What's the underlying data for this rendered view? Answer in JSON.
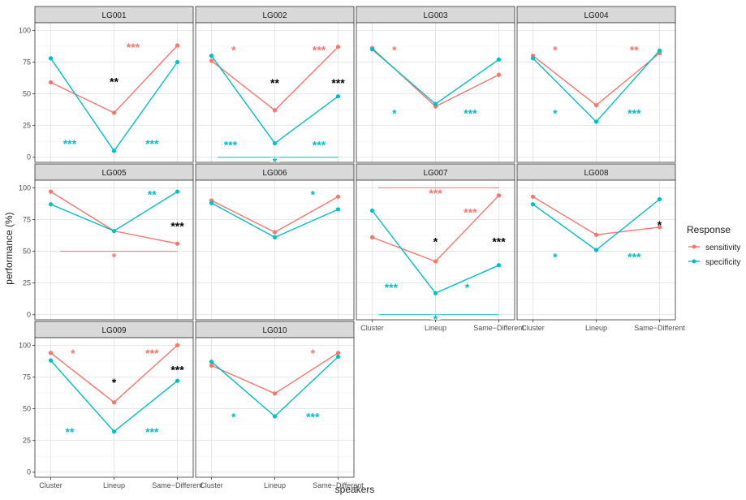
{
  "x_axis_title": "speakers",
  "y_axis_title": "performance (%)",
  "legend": {
    "title": "Response",
    "items": [
      {
        "label": "sensitivity",
        "color": "#F8766D"
      },
      {
        "label": "specificity",
        "color": "#00BFC4"
      }
    ]
  },
  "chart_data": {
    "type": "line",
    "facets": [
      "LG001",
      "LG002",
      "LG003",
      "LG004",
      "LG005",
      "LG006",
      "LG007",
      "LG008",
      "LG009",
      "LG010"
    ],
    "categories": [
      "Cluster",
      "Lineup",
      "Same−Different"
    ],
    "y_ticks": [
      "0",
      "25",
      "50",
      "75",
      "100"
    ],
    "ylim": [
      -4,
      106
    ],
    "grid": true,
    "legend_position": "right",
    "panels": [
      {
        "name": "LG001",
        "sensitivity": [
          59,
          35,
          88
        ],
        "specificity": [
          78,
          5,
          75
        ],
        "annotations": [
          {
            "text": "***",
            "color": "#F8766D",
            "x": 2.3,
            "y": 88
          },
          {
            "text": "**",
            "color": "#000000",
            "x": 2.0,
            "y": 61
          },
          {
            "text": "***",
            "color": "#00BFC4",
            "x": 1.3,
            "y": 12
          },
          {
            "text": "***",
            "color": "#00BFC4",
            "x": 2.6,
            "y": 12
          }
        ]
      },
      {
        "name": "LG002",
        "sensitivity": [
          76,
          37,
          87
        ],
        "specificity": [
          80,
          11,
          48
        ],
        "annotations": [
          {
            "text": "*",
            "color": "#F8766D",
            "x": 1.35,
            "y": 86
          },
          {
            "text": "***",
            "color": "#F8766D",
            "x": 2.7,
            "y": 86
          },
          {
            "text": "**",
            "color": "#000000",
            "x": 2.0,
            "y": 60
          },
          {
            "text": "***",
            "color": "#000000",
            "x": 3.0,
            "y": 60
          },
          {
            "text": "***",
            "color": "#00BFC4",
            "x": 1.3,
            "y": 11
          },
          {
            "text": "***",
            "color": "#00BFC4",
            "x": 2.7,
            "y": 11
          },
          {
            "text": "*",
            "color": "#00BFC4",
            "x": 2.0,
            "y": -2
          }
        ],
        "brackets": [
          {
            "color": "#00BFC4",
            "from": 1.1,
            "to": 3.0,
            "y": 0
          }
        ]
      },
      {
        "name": "LG003",
        "sensitivity": [
          86,
          40,
          65
        ],
        "specificity": [
          85,
          42,
          77
        ],
        "annotations": [
          {
            "text": "*",
            "color": "#F8766D",
            "x": 1.35,
            "y": 86
          },
          {
            "text": "*",
            "color": "#00BFC4",
            "x": 1.35,
            "y": 36
          },
          {
            "text": "***",
            "color": "#00BFC4",
            "x": 2.55,
            "y": 36
          }
        ]
      },
      {
        "name": "LG004",
        "sensitivity": [
          80,
          41,
          82
        ],
        "specificity": [
          78,
          28,
          84
        ],
        "annotations": [
          {
            "text": "*",
            "color": "#F8766D",
            "x": 1.35,
            "y": 86
          },
          {
            "text": "**",
            "color": "#F8766D",
            "x": 2.6,
            "y": 86
          },
          {
            "text": "*",
            "color": "#00BFC4",
            "x": 1.35,
            "y": 36
          },
          {
            "text": "***",
            "color": "#00BFC4",
            "x": 2.6,
            "y": 36
          }
        ]
      },
      {
        "name": "LG005",
        "sensitivity": [
          97,
          66,
          56
        ],
        "specificity": [
          87,
          66,
          97
        ],
        "annotations": [
          {
            "text": "**",
            "color": "#00BFC4",
            "x": 2.6,
            "y": 96
          },
          {
            "text": "***",
            "color": "#000000",
            "x": 3.0,
            "y": 71
          },
          {
            "text": "*",
            "color": "#F8766D",
            "x": 2.0,
            "y": 47
          }
        ],
        "brackets": [
          {
            "color": "#F8766D",
            "from": 1.15,
            "to": 3.0,
            "y": 50
          }
        ]
      },
      {
        "name": "LG006",
        "sensitivity": [
          90,
          65,
          93
        ],
        "specificity": [
          88,
          61,
          83
        ],
        "annotations": [
          {
            "text": "*",
            "color": "#00BFC4",
            "x": 2.6,
            "y": 96
          }
        ]
      },
      {
        "name": "LG007",
        "sensitivity": [
          61,
          42,
          94
        ],
        "specificity": [
          82,
          17,
          39
        ],
        "annotations": [
          {
            "text": "***",
            "color": "#F8766D",
            "x": 2.0,
            "y": 97
          },
          {
            "text": "***",
            "color": "#F8766D",
            "x": 2.55,
            "y": 82
          },
          {
            "text": "*",
            "color": "#000000",
            "x": 2.0,
            "y": 59
          },
          {
            "text": "***",
            "color": "#000000",
            "x": 3.0,
            "y": 59
          },
          {
            "text": "***",
            "color": "#00BFC4",
            "x": 1.3,
            "y": 23
          },
          {
            "text": "*",
            "color": "#00BFC4",
            "x": 2.5,
            "y": 23
          },
          {
            "text": "*",
            "color": "#00BFC4",
            "x": 2.0,
            "y": -2
          }
        ],
        "brackets": [
          {
            "color": "#F8766D",
            "from": 1.1,
            "to": 3.0,
            "y": 100
          },
          {
            "color": "#00BFC4",
            "from": 1.1,
            "to": 3.0,
            "y": 0
          }
        ]
      },
      {
        "name": "LG008",
        "sensitivity": [
          93,
          63,
          69
        ],
        "specificity": [
          87,
          51,
          91
        ],
        "annotations": [
          {
            "text": "*",
            "color": "#000000",
            "x": 3.0,
            "y": 72
          },
          {
            "text": "*",
            "color": "#00BFC4",
            "x": 1.35,
            "y": 47
          },
          {
            "text": "***",
            "color": "#00BFC4",
            "x": 2.6,
            "y": 47
          }
        ]
      },
      {
        "name": "LG009",
        "sensitivity": [
          94,
          55,
          100
        ],
        "specificity": [
          88,
          32,
          72
        ],
        "annotations": [
          {
            "text": "*",
            "color": "#F8766D",
            "x": 1.35,
            "y": 95
          },
          {
            "text": "***",
            "color": "#F8766D",
            "x": 2.6,
            "y": 95
          },
          {
            "text": "***",
            "color": "#000000",
            "x": 3.0,
            "y": 82
          },
          {
            "text": "*",
            "color": "#000000",
            "x": 2.0,
            "y": 72
          },
          {
            "text": "**",
            "color": "#00BFC4",
            "x": 1.3,
            "y": 33
          },
          {
            "text": "***",
            "color": "#00BFC4",
            "x": 2.6,
            "y": 33
          }
        ]
      },
      {
        "name": "LG010",
        "sensitivity": [
          84,
          62,
          94
        ],
        "specificity": [
          87,
          44,
          91
        ],
        "annotations": [
          {
            "text": "*",
            "color": "#F8766D",
            "x": 2.6,
            "y": 95
          },
          {
            "text": "*",
            "color": "#00BFC4",
            "x": 1.35,
            "y": 45
          },
          {
            "text": "***",
            "color": "#00BFC4",
            "x": 2.6,
            "y": 45
          }
        ]
      }
    ]
  }
}
